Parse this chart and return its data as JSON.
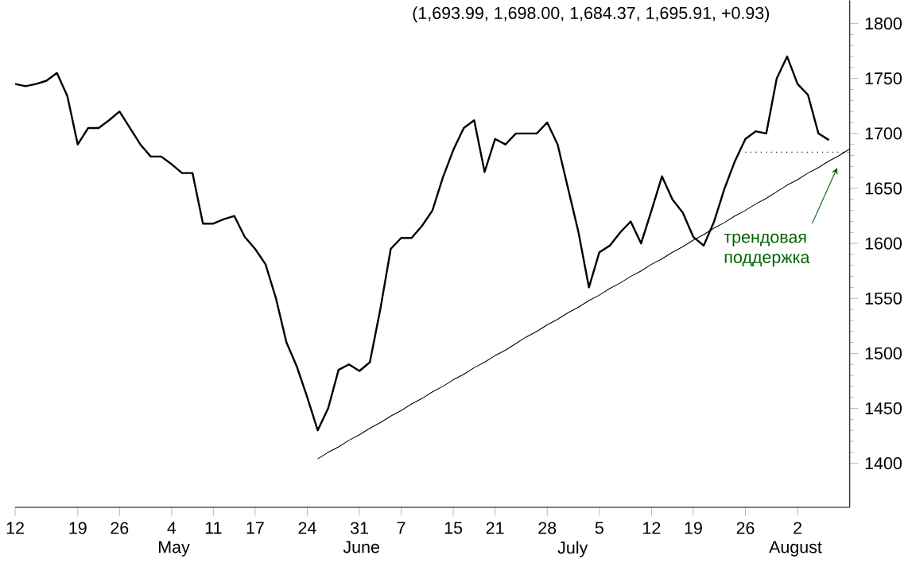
{
  "chart_data": {
    "type": "line",
    "title": "(1,693.99, 1,698.00, 1,684.37, 1,695.91, +0.93)",
    "categories": [
      "12",
      null,
      null,
      null,
      null,
      null,
      "19",
      null,
      null,
      null,
      "26",
      null,
      null,
      null,
      null,
      "4",
      null,
      null,
      null,
      "11",
      null,
      null,
      null,
      "17",
      null,
      null,
      null,
      null,
      "24",
      null,
      null,
      null,
      null,
      "31",
      null,
      null,
      null,
      "7",
      null,
      null,
      null,
      null,
      "15",
      null,
      null,
      null,
      "21",
      null,
      null,
      null,
      null,
      "28",
      null,
      null,
      null,
      null,
      "5",
      null,
      null,
      null,
      null,
      "12",
      null,
      null,
      null,
      "19",
      null,
      null,
      null,
      null,
      "26",
      null,
      null,
      null,
      null,
      "2",
      null,
      null,
      null,
      null,
      null
    ],
    "ylim": [
      1360,
      1821
    ],
    "yticks": [
      1400,
      1450,
      1500,
      1550,
      1600,
      1650,
      1700,
      1750,
      1800
    ],
    "grid": false,
    "marker": "none",
    "line_style": "solid",
    "annotations": [
      "трендовая поддержка",
      "May",
      "June",
      "July",
      "August"
    ],
    "series": [
      {
        "color": "#000000",
        "values": [
          1745,
          1743,
          1745,
          1748,
          1755,
          1734,
          1690,
          1705,
          1705,
          1712,
          1720,
          1705,
          1690,
          1679,
          1679,
          1672,
          1664,
          1664,
          1618,
          1618,
          1622,
          1625,
          1606,
          1595,
          1581,
          1550,
          1510,
          1488,
          1460,
          1430,
          1450,
          1485,
          1490,
          1484,
          1492,
          1540,
          1595,
          1605,
          1605,
          1616,
          1630,
          1660,
          1685,
          1705,
          1712,
          1665,
          1695,
          1690,
          1700,
          1700,
          1700,
          1710,
          1690,
          1650,
          1610,
          1560,
          1592,
          1598,
          1610,
          1620,
          1600,
          1630,
          1661,
          1640,
          1628,
          1606,
          1598,
          1620,
          1650,
          1675,
          1695,
          1702,
          1700,
          1750,
          1770,
          1745,
          1735,
          1700,
          1694,
          null,
          null
        ]
      },
      {
        "color": "#000000",
        "values": [
          null,
          null,
          null,
          null,
          null,
          null,
          null,
          null,
          null,
          null,
          null,
          null,
          null,
          null,
          null,
          null,
          null,
          null,
          null,
          null,
          null,
          null,
          null,
          null,
          null,
          null,
          null,
          null,
          null,
          1404,
          1410,
          1415,
          1421,
          1426,
          1432,
          1437,
          1443,
          1448,
          1454,
          1459,
          1465,
          1470,
          1476,
          1481,
          1487,
          1492,
          1498,
          1503,
          1509,
          1515,
          1520,
          1526,
          1531,
          1537,
          1542,
          1548,
          1553,
          1559,
          1564,
          1570,
          1575,
          1581,
          1586,
          1592,
          1597,
          1603,
          1608,
          1614,
          1619,
          1625,
          1630,
          1636,
          1641,
          1647,
          1653,
          1658,
          1664,
          1669,
          1675,
          1680,
          1686
        ]
      },
      {
        "color": "#000000",
        "line_style": "dotted",
        "values": [
          null,
          null,
          null,
          null,
          null,
          null,
          null,
          null,
          null,
          null,
          null,
          null,
          null,
          null,
          null,
          null,
          null,
          null,
          null,
          null,
          null,
          null,
          null,
          null,
          null,
          null,
          null,
          null,
          null,
          null,
          null,
          null,
          null,
          null,
          null,
          null,
          null,
          null,
          null,
          null,
          null,
          null,
          null,
          null,
          null,
          null,
          null,
          null,
          null,
          null,
          null,
          null,
          null,
          null,
          null,
          null,
          null,
          null,
          null,
          null,
          null,
          null,
          null,
          null,
          null,
          null,
          null,
          null,
          null,
          null,
          1683,
          1683,
          1683,
          1683,
          1683,
          1683,
          1683,
          1683,
          1683,
          1683,
          1683
        ]
      }
    ]
  }
}
